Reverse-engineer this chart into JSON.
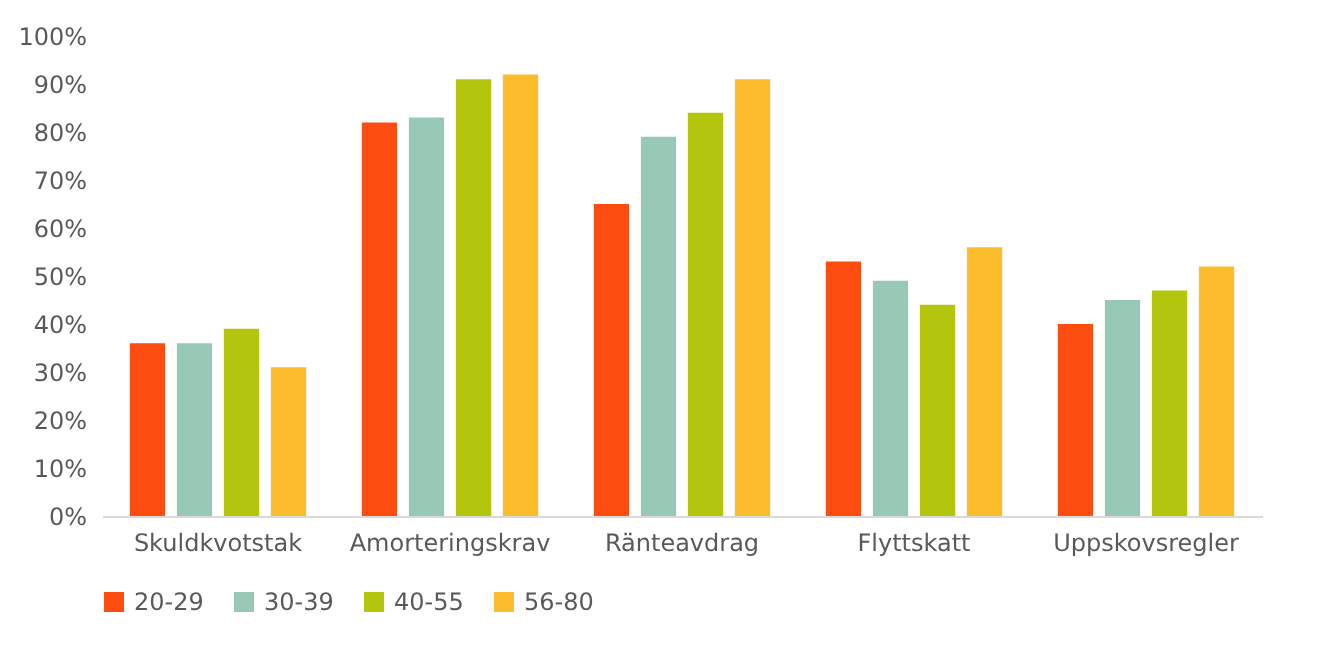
{
  "chart_data": {
    "type": "bar",
    "categories": [
      "Skuldkvotstak",
      "Amorteringskrav",
      "Ränteavdrag",
      "Flyttskatt",
      "Uppskovsregler"
    ],
    "series": [
      {
        "name": "20-29",
        "color": "#fe4d10",
        "values": [
          0.36,
          0.82,
          0.65,
          0.53,
          0.4
        ]
      },
      {
        "name": "30-39",
        "color": "#98c9b6",
        "values": [
          0.36,
          0.83,
          0.79,
          0.49,
          0.45
        ]
      },
      {
        "name": "40-55",
        "color": "#b4c50e",
        "values": [
          0.39,
          0.91,
          0.84,
          0.44,
          0.47
        ]
      },
      {
        "name": "56-80",
        "color": "#fcbd2d",
        "values": [
          0.31,
          0.92,
          0.91,
          0.56,
          0.52
        ]
      }
    ],
    "ylim": [
      0,
      1
    ],
    "yticks": [
      {
        "value": 0,
        "label": "0%"
      },
      {
        "value": 0.1,
        "label": "10%"
      },
      {
        "value": 0.2,
        "label": "20%"
      },
      {
        "value": 0.3,
        "label": "30%"
      },
      {
        "value": 0.4,
        "label": "40%"
      },
      {
        "value": 0.5,
        "label": "50%"
      },
      {
        "value": 0.6,
        "label": "60%"
      },
      {
        "value": 0.7,
        "label": "70%"
      },
      {
        "value": 0.8,
        "label": "80%"
      },
      {
        "value": 0.9,
        "label": "90%"
      },
      {
        "value": 1,
        "label": "100%"
      }
    ],
    "grid": false,
    "legend": "bottom"
  }
}
